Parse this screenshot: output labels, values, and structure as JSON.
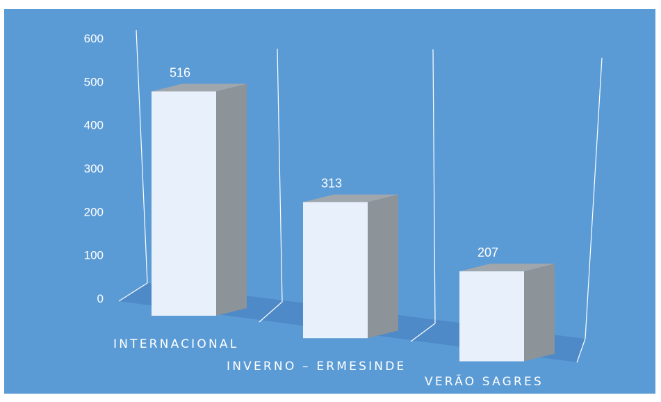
{
  "colors": {
    "background": "#5b9bd5",
    "floor": "#4e8ac7",
    "bar_front": "#e8f0fb",
    "bar_side": "#8c9399",
    "bar_top": "#9fa6ac",
    "grid": "#ffffff",
    "text": "#ffffff"
  },
  "chart_data": {
    "type": "bar",
    "style": "3d-column",
    "categories": [
      "INTERNACIONAL",
      "INVERNO – ERMESINDE",
      "VERÃO SAGRES"
    ],
    "values": [
      516,
      313,
      207
    ],
    "data_labels": [
      "516",
      "313",
      "207"
    ],
    "yticks": [
      0,
      100,
      200,
      300,
      400,
      500,
      600
    ],
    "ylim": [
      0,
      600
    ],
    "title": "",
    "xlabel": "",
    "ylabel": "",
    "grid": true,
    "legend": "none"
  }
}
